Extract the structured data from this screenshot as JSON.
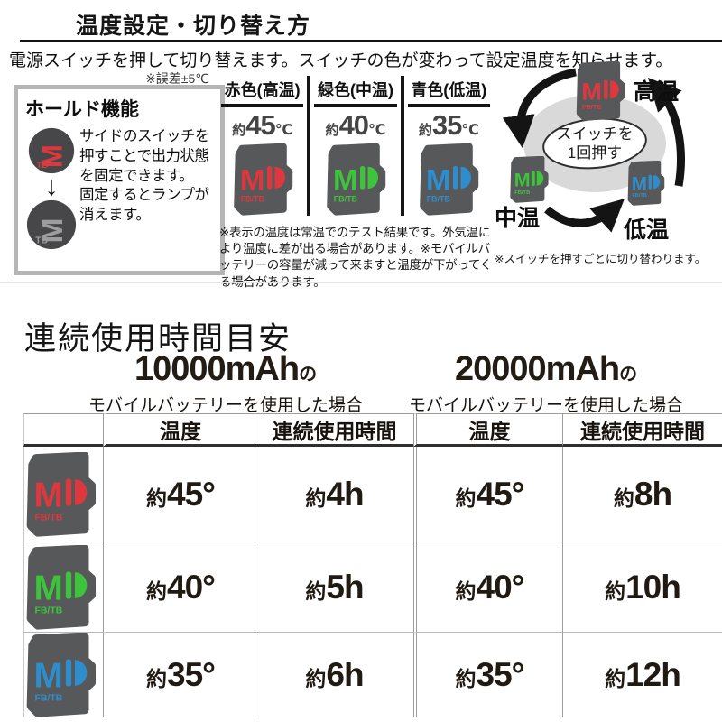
{
  "top": {
    "title": "温度設定・切り替え方",
    "intro": "電源スイッチを押して切り替えます。スイッチの色が変わって設定温度を知らせます。",
    "tolerance_note": "※誤差±5℃",
    "hold": {
      "title": "ホールド機能",
      "desc1": "サイドのスイッチを押すことで出力状態を固定できます。",
      "desc2": "固定するとランプが消えます。",
      "arrow_icon": "↓",
      "icon_on_color": "#de383e",
      "icon_off_color": "#9d9d9f"
    },
    "temp_levels": [
      {
        "header": "赤色(高温)",
        "approx": "約",
        "temp": "45",
        "unit": "℃",
        "label": "高温",
        "color": "#de383e"
      },
      {
        "header": "緑色(中温)",
        "approx": "約",
        "temp": "40",
        "unit": "℃",
        "label": "中温",
        "color": "#3ec43c"
      },
      {
        "header": "青色(低温)",
        "approx": "約",
        "temp": "35",
        "unit": "℃",
        "label": "低温",
        "color": "#2e8ecd"
      }
    ],
    "temp_note": "※表示の温度は常温でのテスト結果です。外気温により温度に差が出る場合があります。※モバイルバッテリーの容量が減って来ますと温度が下がってくる場合があります。",
    "cycle": {
      "center_line1": "スイッチを",
      "center_line2": "1回押す",
      "note": "※スイッチを押すごとに切り替わります。"
    },
    "logo": {
      "letter": "M",
      "sub": "FB/TB",
      "hold_sub": "TB"
    }
  },
  "usage": {
    "title": "連続使用時間目安",
    "batteries": [
      {
        "capacity": "10000mAh",
        "suffix": "の",
        "desc": "モバイルバッテリーを使用した場合"
      },
      {
        "capacity": "20000mAh",
        "suffix": "の",
        "desc": "モバイルバッテリーを使用した場合"
      }
    ],
    "table": {
      "col_headers": [
        "温度",
        "連続使用時間",
        "温度",
        "連続使用時間"
      ],
      "rows": [
        {
          "level": "高温",
          "color": "#de383e",
          "temp_10000": "約45°",
          "time_10000": "約4h",
          "temp_20000": "約45°",
          "time_20000": "約8h"
        },
        {
          "level": "中温",
          "color": "#3ec43c",
          "temp_10000": "約40°",
          "time_10000": "約5h",
          "temp_20000": "約40°",
          "time_20000": "約10h"
        },
        {
          "level": "低温",
          "color": "#2e8ecd",
          "temp_10000": "約35°",
          "time_10000": "約6h",
          "temp_20000": "約35°",
          "time_20000": "約12h"
        }
      ]
    }
  }
}
